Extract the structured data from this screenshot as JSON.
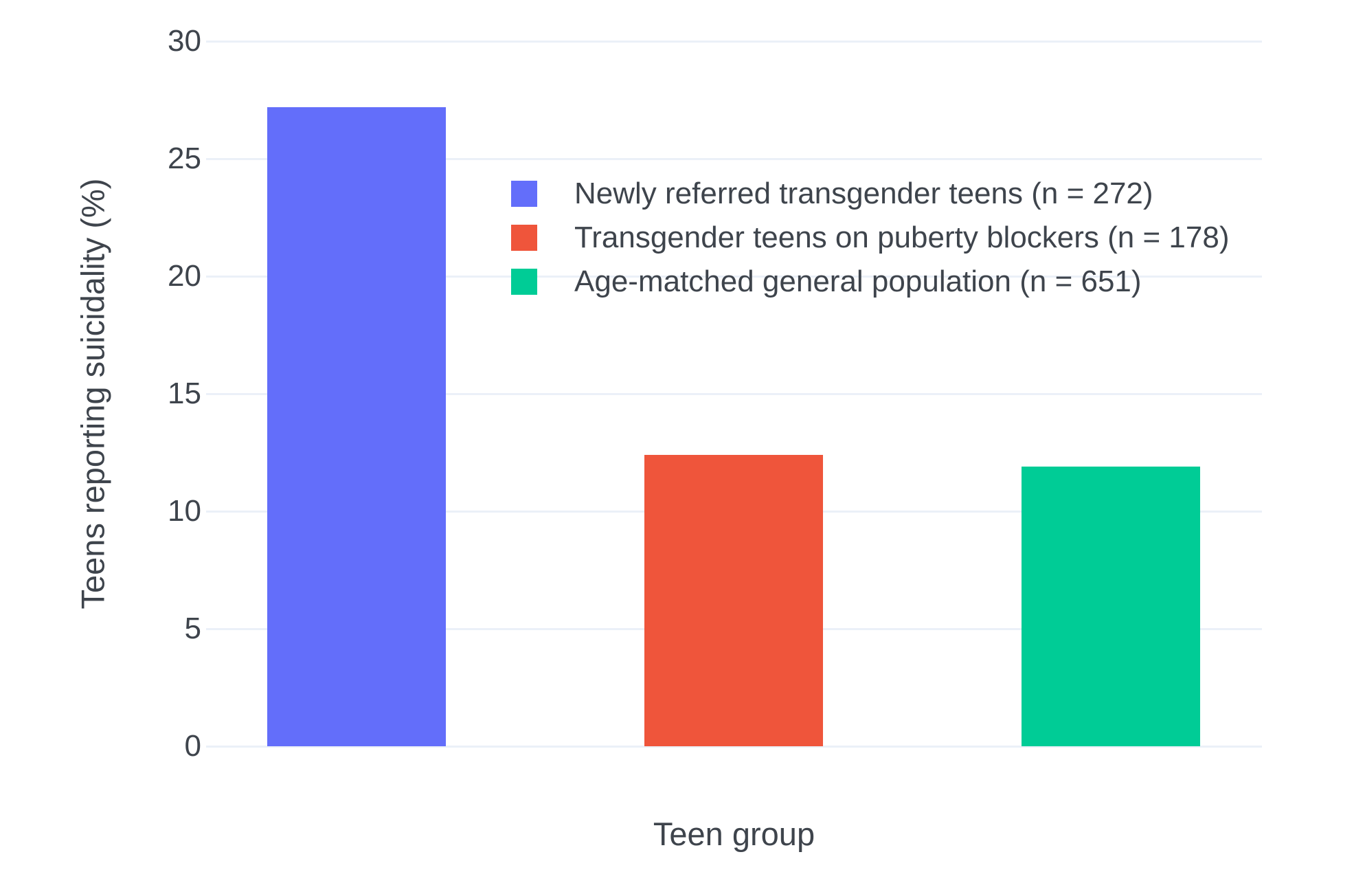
{
  "chart_data": {
    "type": "bar",
    "title": "",
    "xlabel": "Teen group",
    "ylabel": "Teens reporting suicidality (%)",
    "ylim": [
      0,
      30
    ],
    "yticks": [
      0,
      5,
      10,
      15,
      20,
      25,
      30
    ],
    "grid": true,
    "legend_position": "inside-top-center",
    "categories": [
      "Newly referred transgender teens (n = 272)",
      "Transgender teens on puberty blockers (n = 178)",
      "Age-matched general population (n = 651)"
    ],
    "series": [
      {
        "name": "Newly referred transgender teens (n = 272)",
        "value": 27.2,
        "color": "#636EFA"
      },
      {
        "name": "Transgender teens on puberty blockers (n = 178)",
        "value": 12.4,
        "color": "#EF553B"
      },
      {
        "name": "Age-matched general population (n = 651)",
        "value": 11.9,
        "color": "#00CC96"
      }
    ],
    "colors": {
      "background": "#FFFFFF",
      "grid": "#EBF0F8",
      "text": "#3E444C"
    }
  }
}
